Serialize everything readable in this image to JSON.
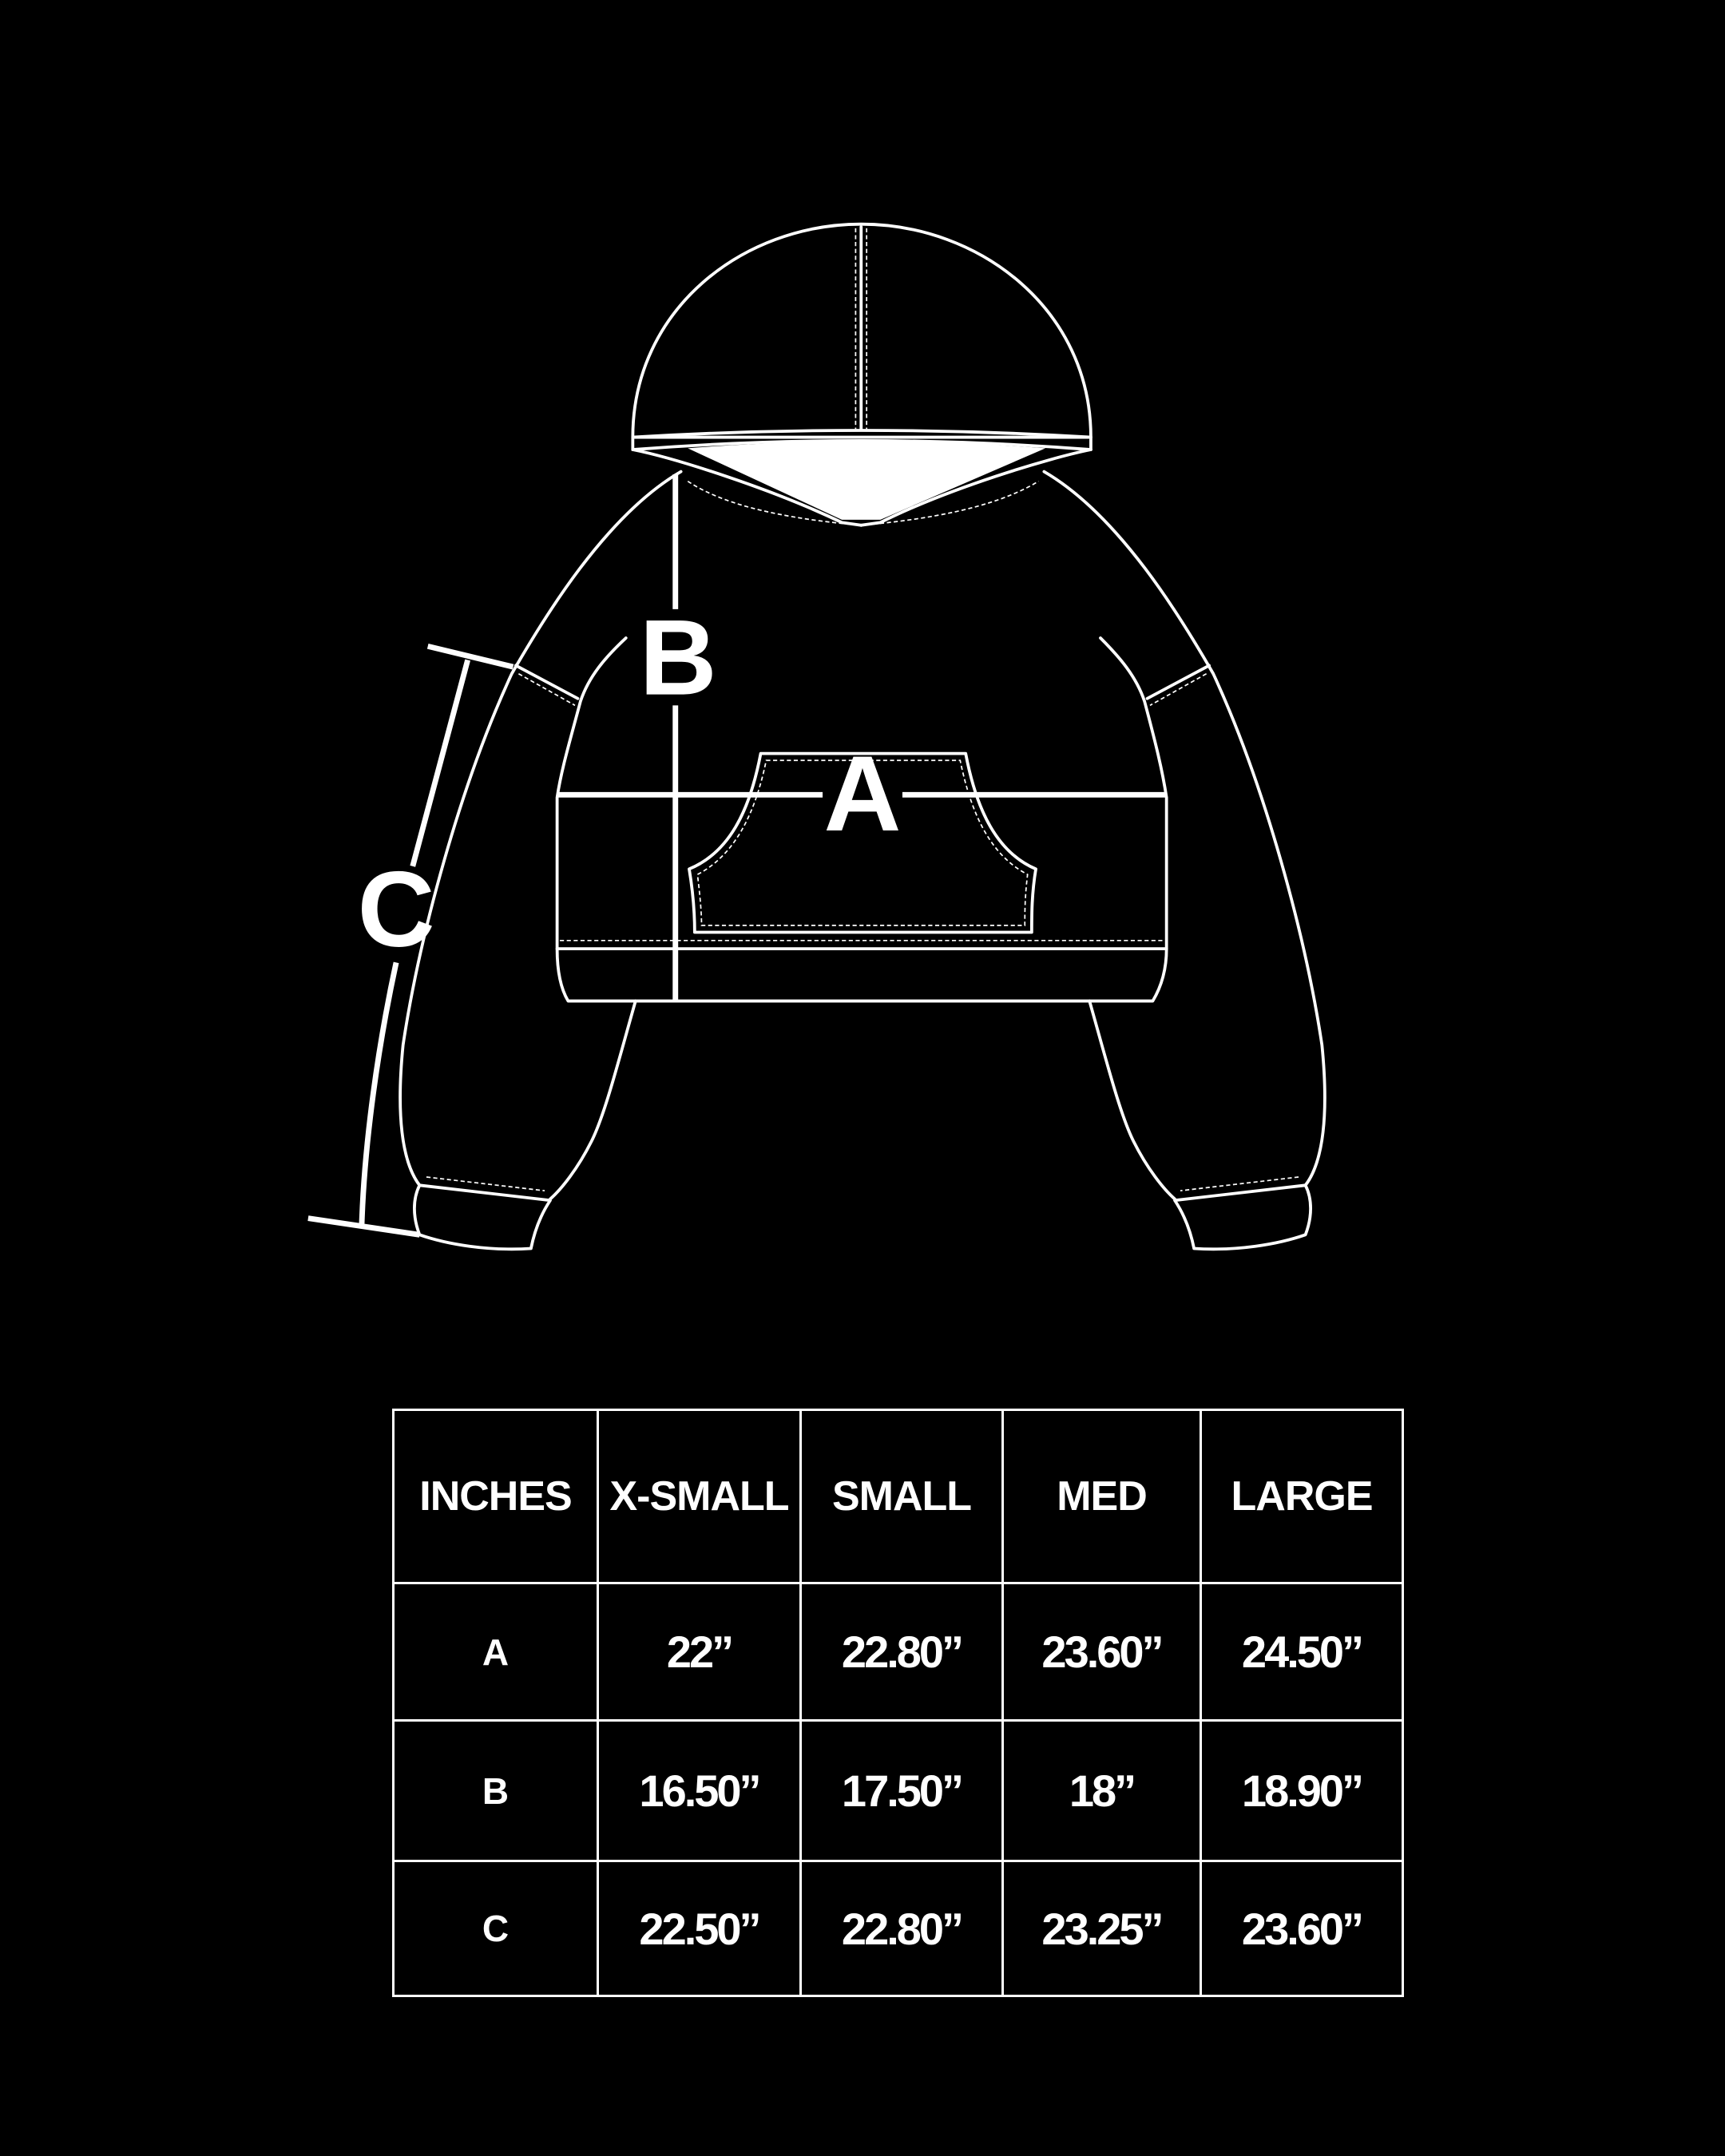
{
  "diagram": {
    "labels": {
      "a": "A",
      "b": "B",
      "c": "C"
    },
    "colors": {
      "background": "#000000",
      "line": "#ffffff"
    }
  },
  "size_table": {
    "headers": [
      "INCHES",
      "X-SMALL",
      "SMALL",
      "MED",
      "LARGE"
    ],
    "rows": [
      {
        "label": "A",
        "values": [
          "22”",
          "22.80”",
          "23.60”",
          "24.50”"
        ]
      },
      {
        "label": "B",
        "values": [
          "16.50”",
          "17.50”",
          "18”",
          "18.90”"
        ]
      },
      {
        "label": "C",
        "values": [
          "22.50”",
          "22.80”",
          "23.25”",
          "23.60”"
        ]
      }
    ]
  }
}
